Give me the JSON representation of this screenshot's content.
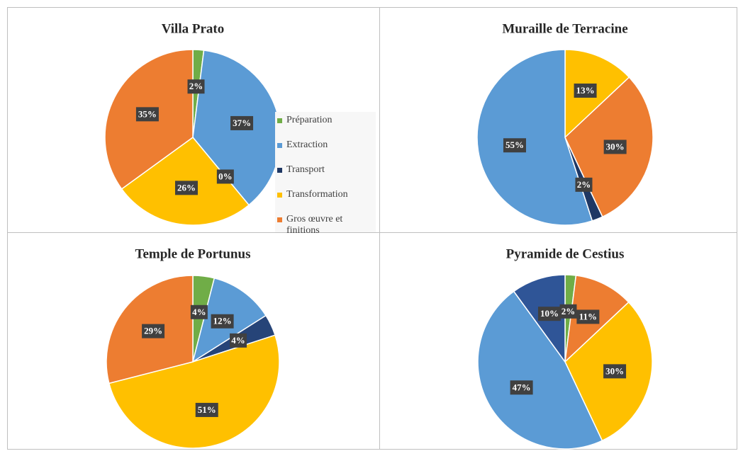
{
  "chart_data": [
    {
      "type": "pie",
      "title": "Villa Prato",
      "categories": [
        "Préparation",
        "Extraction",
        "Transport",
        "Transformation",
        "Gros œuvre et finitions"
      ],
      "values": [
        2,
        37,
        0,
        26,
        35
      ],
      "value_labels": [
        "2%",
        "37%",
        "0%",
        "26%",
        "35%"
      ],
      "colors": [
        "#70ad47",
        "#5b9bd5",
        "#1f3864",
        "#ffc000",
        "#ed7d31"
      ],
      "legend": "right"
    },
    {
      "type": "pie",
      "title": "Muraille de Terracine",
      "categories": [
        "Transformation",
        "Gros œuvre et finitions",
        "Transport",
        "Extraction"
      ],
      "values": [
        13,
        30,
        2,
        55
      ],
      "value_labels": [
        "13%",
        "30%",
        "2%",
        "55%"
      ],
      "colors": [
        "#ffc000",
        "#ed7d31",
        "#1f3864",
        "#5b9bd5"
      ]
    },
    {
      "type": "pie",
      "title": "Temple de Portunus",
      "categories": [
        "Préparation",
        "Extraction",
        "Transport",
        "Transformation",
        "Gros œuvre et finitions"
      ],
      "values": [
        4,
        12,
        4,
        51,
        29
      ],
      "value_labels": [
        "4%",
        "12%",
        "4%",
        "51%",
        "29%"
      ],
      "colors": [
        "#70ad47",
        "#5b9bd5",
        "#264478",
        "#ffc000",
        "#ed7d31"
      ]
    },
    {
      "type": "pie",
      "title": "Pyramide de Cestius",
      "categories": [
        "Préparation",
        "Gros œuvre et finitions",
        "Transformation",
        "Extraction",
        "Transport"
      ],
      "values": [
        2,
        11,
        30,
        47,
        10
      ],
      "value_labels": [
        "2%",
        "11%",
        "30%",
        "47%",
        "10%"
      ],
      "colors": [
        "#70ad47",
        "#ed7d31",
        "#ffc000",
        "#5b9bd5",
        "#2f5597"
      ]
    }
  ]
}
